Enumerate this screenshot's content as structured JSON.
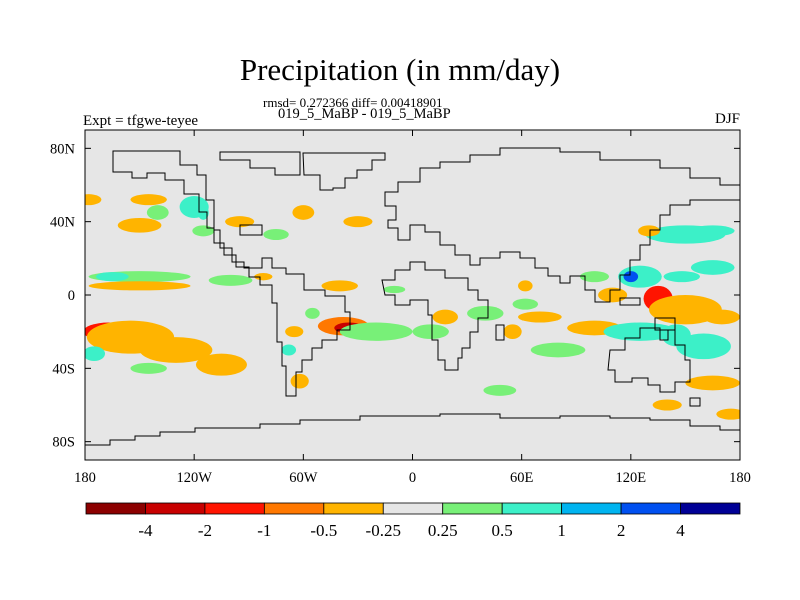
{
  "chart_data": {
    "type": "heatmap",
    "title": "Precipitation (in mm/day)",
    "subtitle_stats": "rmsd= 0.272366 diff= 0.00418901",
    "subtitle_case": "019_5_MaBP - 019_5_MaBP",
    "left_label": "Expt = tfgwe-teyee",
    "right_label": "DJF",
    "xlim": [
      -180,
      180
    ],
    "ylim": [
      -90,
      90
    ],
    "xticks": [
      {
        "value": -180,
        "label": "180"
      },
      {
        "value": -120,
        "label": "120W"
      },
      {
        "value": -60,
        "label": "60W"
      },
      {
        "value": 0,
        "label": "0"
      },
      {
        "value": 60,
        "label": "60E"
      },
      {
        "value": 120,
        "label": "120E"
      },
      {
        "value": 180,
        "label": "180"
      }
    ],
    "yticks": [
      {
        "value": 80,
        "label": "80N"
      },
      {
        "value": 40,
        "label": "40N"
      },
      {
        "value": 0,
        "label": "0"
      },
      {
        "value": -40,
        "label": "40S"
      },
      {
        "value": -80,
        "label": "80S"
      }
    ],
    "background_color": "#e6e6e6",
    "colorbar": {
      "colors": [
        "#8c0000",
        "#c80000",
        "#ff1400",
        "#ff7800",
        "#ffb400",
        "#e6e6e6",
        "#78f078",
        "#3cf0c8",
        "#00b4f0",
        "#0050f0",
        "#000096"
      ],
      "labels": [
        "-4",
        "-2",
        "-1",
        "-0.5",
        "-0.25",
        "0.25",
        "0.5",
        "1",
        "2",
        "4"
      ]
    },
    "anomalies": [
      {
        "lon": -167,
        "lat": -20,
        "rx": 14,
        "ry": 5,
        "value": -1.5
      },
      {
        "lon": -155,
        "lat": -23,
        "rx": 24,
        "ry": 9,
        "value": -0.4
      },
      {
        "lon": -130,
        "lat": -30,
        "rx": 20,
        "ry": 7,
        "value": -0.3
      },
      {
        "lon": -105,
        "lat": -38,
        "rx": 14,
        "ry": 6,
        "value": -0.3
      },
      {
        "lon": -175,
        "lat": -32,
        "rx": 6,
        "ry": 4,
        "value": 0.6
      },
      {
        "lon": -145,
        "lat": -40,
        "rx": 10,
        "ry": 3,
        "value": 0.4
      },
      {
        "lon": -150,
        "lat": 10,
        "rx": 28,
        "ry": 3,
        "value": 0.4
      },
      {
        "lon": -165,
        "lat": 10,
        "rx": 9,
        "ry": 2.5,
        "value": 0.8
      },
      {
        "lon": -150,
        "lat": 5,
        "rx": 28,
        "ry": 2.5,
        "value": -0.3
      },
      {
        "lon": -150,
        "lat": 38,
        "rx": 12,
        "ry": 4,
        "value": -0.3
      },
      {
        "lon": -178,
        "lat": 52,
        "rx": 7,
        "ry": 3,
        "value": -0.3
      },
      {
        "lon": -145,
        "lat": 52,
        "rx": 10,
        "ry": 3,
        "value": -0.3
      },
      {
        "lon": -140,
        "lat": 45,
        "rx": 6,
        "ry": 4,
        "value": 0.4
      },
      {
        "lon": -120,
        "lat": 48,
        "rx": 8,
        "ry": 6,
        "value": 0.5
      },
      {
        "lon": -115,
        "lat": 45,
        "rx": 3,
        "ry": 4,
        "value": 0.9
      },
      {
        "lon": -115,
        "lat": 35,
        "rx": 6,
        "ry": 3,
        "value": 0.4
      },
      {
        "lon": -95,
        "lat": 40,
        "rx": 8,
        "ry": 3,
        "value": -0.3
      },
      {
        "lon": -75,
        "lat": 33,
        "rx": 7,
        "ry": 3,
        "value": 0.4
      },
      {
        "lon": -60,
        "lat": 45,
        "rx": 6,
        "ry": 4,
        "value": -0.3
      },
      {
        "lon": -30,
        "lat": 40,
        "rx": 8,
        "ry": 3,
        "value": -0.3
      },
      {
        "lon": -100,
        "lat": 8,
        "rx": 12,
        "ry": 3,
        "value": 0.4
      },
      {
        "lon": -82,
        "lat": 10,
        "rx": 5,
        "ry": 2,
        "value": -0.3
      },
      {
        "lon": -40,
        "lat": 5,
        "rx": 10,
        "ry": 3,
        "value": -0.4
      },
      {
        "lon": -10,
        "lat": 3,
        "rx": 6,
        "ry": 2,
        "value": 0.4
      },
      {
        "lon": -55,
        "lat": -10,
        "rx": 4,
        "ry": 3,
        "value": 0.4
      },
      {
        "lon": -38,
        "lat": -17,
        "rx": 14,
        "ry": 5,
        "value": -0.8
      },
      {
        "lon": -35,
        "lat": -18,
        "rx": 8,
        "ry": 3,
        "value": -2.2
      },
      {
        "lon": -65,
        "lat": -20,
        "rx": 5,
        "ry": 3,
        "value": -0.3
      },
      {
        "lon": -20,
        "lat": -20,
        "rx": 20,
        "ry": 5,
        "value": 0.4
      },
      {
        "lon": -62,
        "lat": -47,
        "rx": 5,
        "ry": 4,
        "value": -0.4
      },
      {
        "lon": -68,
        "lat": -30,
        "rx": 4,
        "ry": 3,
        "value": 0.5
      },
      {
        "lon": 10,
        "lat": -20,
        "rx": 10,
        "ry": 4,
        "value": 0.4
      },
      {
        "lon": 18,
        "lat": -12,
        "rx": 7,
        "ry": 4,
        "value": -0.3
      },
      {
        "lon": 40,
        "lat": -10,
        "rx": 10,
        "ry": 4,
        "value": 0.4
      },
      {
        "lon": 55,
        "lat": -20,
        "rx": 5,
        "ry": 4,
        "value": -0.5
      },
      {
        "lon": 62,
        "lat": -5,
        "rx": 7,
        "ry": 3,
        "value": 0.4
      },
      {
        "lon": 70,
        "lat": -12,
        "rx": 12,
        "ry": 3,
        "value": -0.3
      },
      {
        "lon": 80,
        "lat": -30,
        "rx": 15,
        "ry": 4,
        "value": 0.4
      },
      {
        "lon": 100,
        "lat": -18,
        "rx": 15,
        "ry": 4,
        "value": -0.5
      },
      {
        "lon": 110,
        "lat": 0,
        "rx": 8,
        "ry": 4,
        "value": -0.3
      },
      {
        "lon": 62,
        "lat": 5,
        "rx": 4,
        "ry": 3,
        "value": -0.3
      },
      {
        "lon": 48,
        "lat": -52,
        "rx": 9,
        "ry": 3,
        "value": 0.4
      },
      {
        "lon": 100,
        "lat": 10,
        "rx": 8,
        "ry": 3,
        "value": 0.4
      },
      {
        "lon": 135,
        "lat": -2,
        "rx": 8,
        "ry": 7,
        "value": -1.3
      },
      {
        "lon": 150,
        "lat": -8,
        "rx": 20,
        "ry": 8,
        "value": -0.4
      },
      {
        "lon": 125,
        "lat": 10,
        "rx": 12,
        "ry": 6,
        "value": 0.8
      },
      {
        "lon": 120,
        "lat": 10,
        "rx": 4,
        "ry": 3,
        "value": 2.5
      },
      {
        "lon": 148,
        "lat": 10,
        "rx": 10,
        "ry": 3,
        "value": 0.5
      },
      {
        "lon": 165,
        "lat": 15,
        "rx": 12,
        "ry": 4,
        "value": 0.6
      },
      {
        "lon": 150,
        "lat": 33,
        "rx": 22,
        "ry": 5,
        "value": 0.5
      },
      {
        "lon": 165,
        "lat": 35,
        "rx": 12,
        "ry": 3,
        "value": 0.9
      },
      {
        "lon": 130,
        "lat": 35,
        "rx": 6,
        "ry": 3,
        "value": -0.3
      },
      {
        "lon": 125,
        "lat": -20,
        "rx": 20,
        "ry": 5,
        "value": 0.5
      },
      {
        "lon": 145,
        "lat": -22,
        "rx": 8,
        "ry": 6,
        "value": 0.9
      },
      {
        "lon": 160,
        "lat": -28,
        "rx": 15,
        "ry": 7,
        "value": 0.5
      },
      {
        "lon": 170,
        "lat": -12,
        "rx": 10,
        "ry": 4,
        "value": -0.3
      },
      {
        "lon": 165,
        "lat": -48,
        "rx": 15,
        "ry": 4,
        "value": -0.3
      },
      {
        "lon": 140,
        "lat": -60,
        "rx": 8,
        "ry": 3,
        "value": -0.3
      },
      {
        "lon": 175,
        "lat": -65,
        "rx": 8,
        "ry": 3,
        "value": -0.3
      }
    ]
  }
}
